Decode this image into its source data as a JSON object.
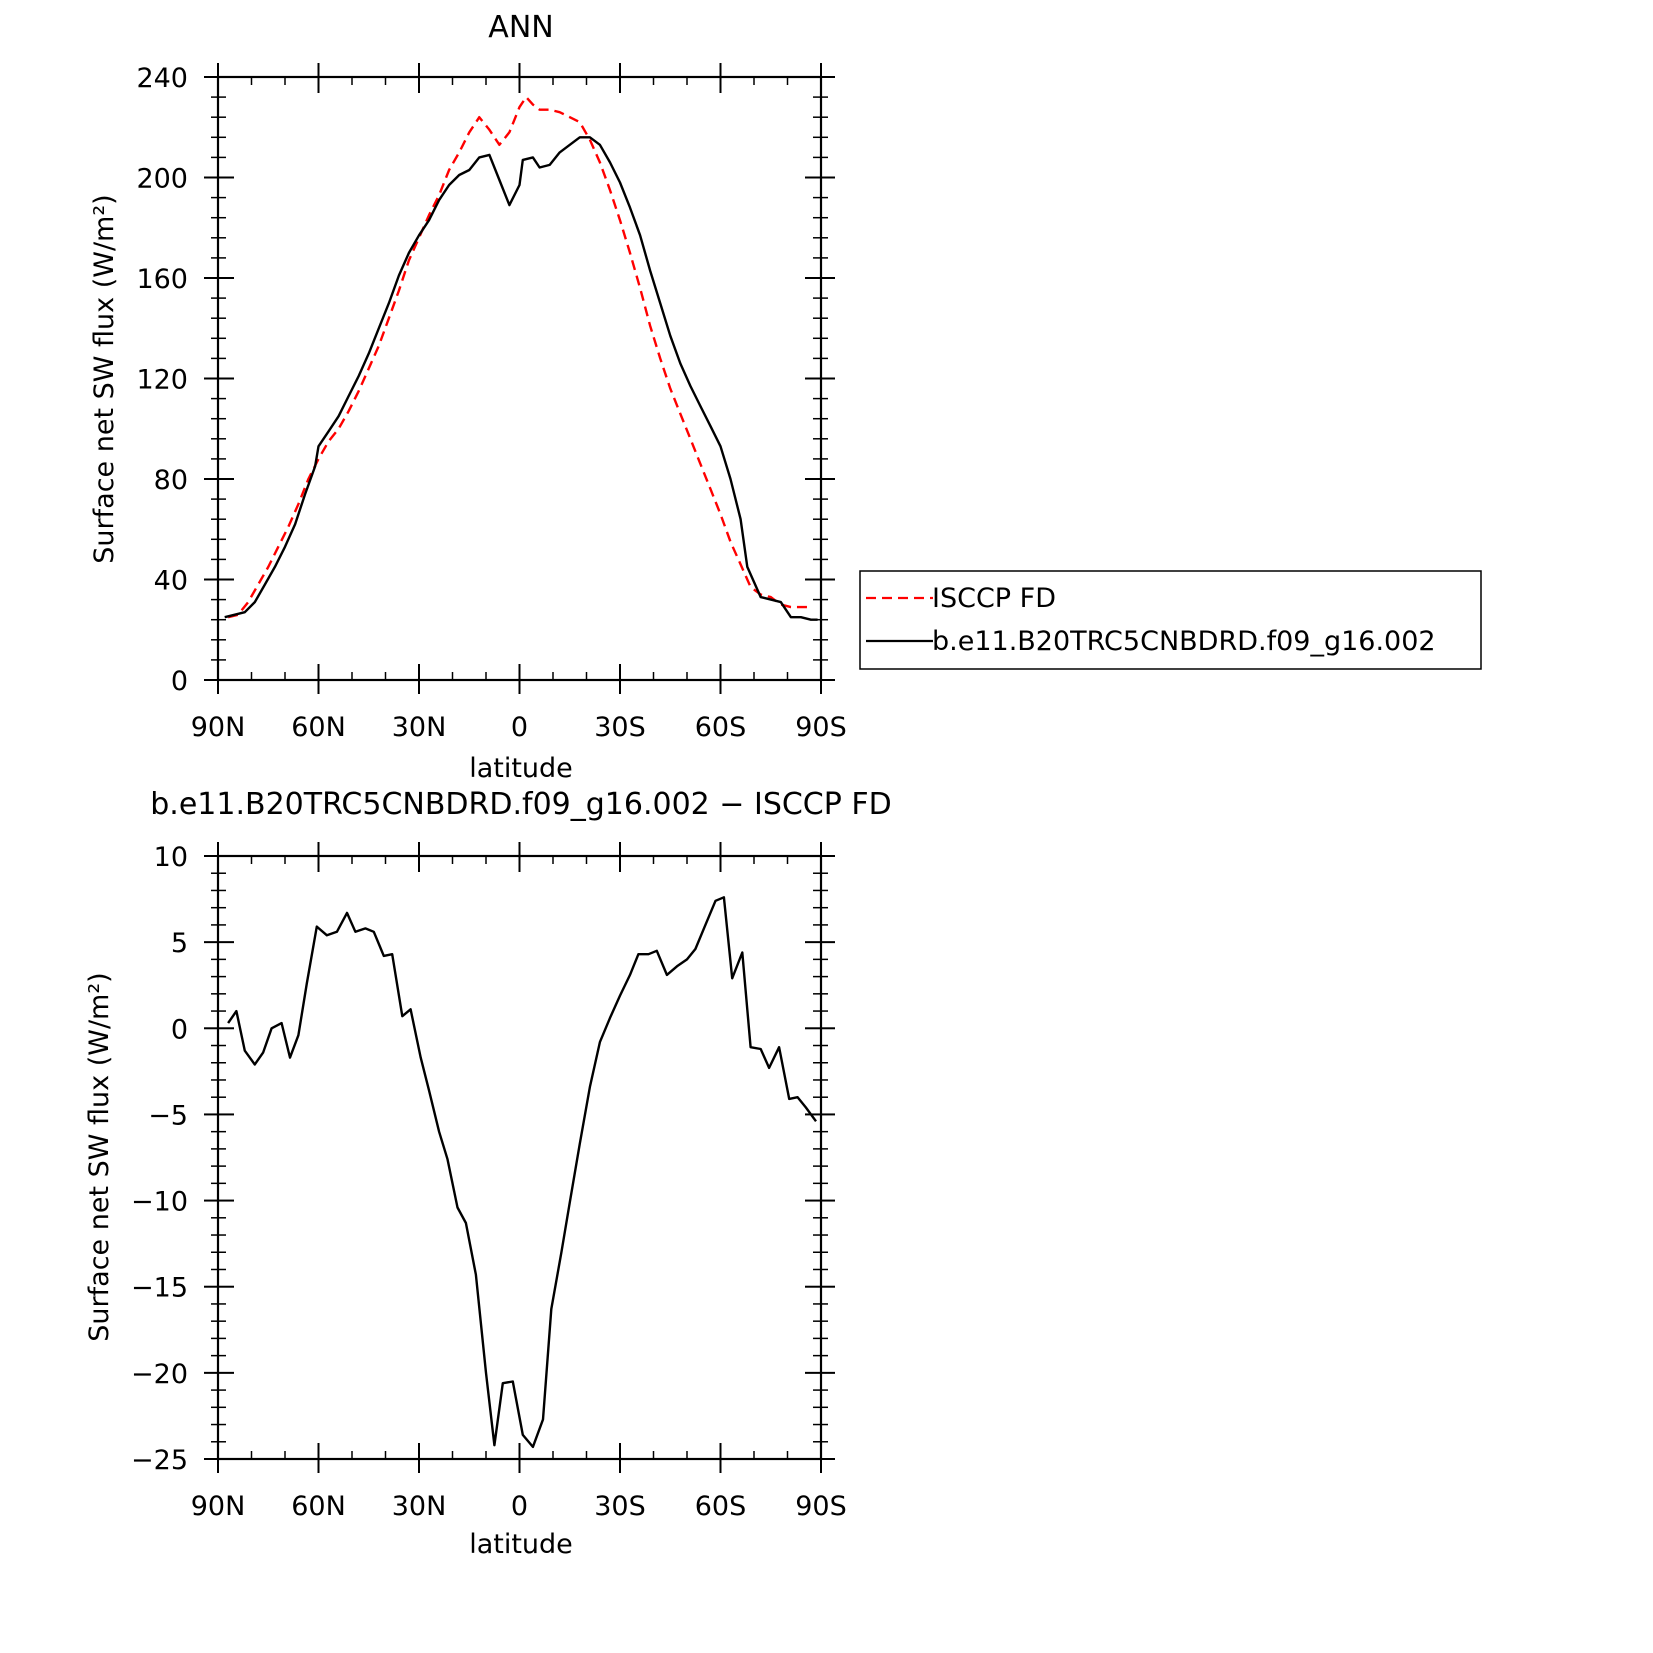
{
  "chart_data": [
    {
      "type": "line",
      "title": "ANN",
      "xlabel": "latitude",
      "ylabel": "Surface net SW flux (W/m²)",
      "xlim": [
        90,
        -90
      ],
      "ylim": [
        0,
        240
      ],
      "x_ticks": [
        90,
        60,
        30,
        0,
        -30,
        -60,
        -90
      ],
      "x_tick_labels": [
        "90N",
        "60N",
        "30N",
        "0",
        "30S",
        "60S",
        "90S"
      ],
      "y_ticks": [
        0,
        40,
        80,
        120,
        160,
        200,
        240
      ],
      "y_tick_labels": [
        "0",
        "40",
        "80",
        "120",
        "160",
        "200",
        "240"
      ],
      "grid": false,
      "legend_position": "right",
      "series": [
        {
          "name": "ISCCP FD",
          "color": "#ff0000",
          "dash": "dashed",
          "points": [
            [
              87,
              25
            ],
            [
              84,
              26
            ],
            [
              81,
              31
            ],
            [
              78,
              38
            ],
            [
              75,
              45
            ],
            [
              72,
              53
            ],
            [
              69,
              61
            ],
            [
              66,
              70
            ],
            [
              63,
              80
            ],
            [
              60,
              88
            ],
            [
              57,
              95
            ],
            [
              54,
              100
            ],
            [
              51,
              107
            ],
            [
              48,
              115
            ],
            [
              45,
              124
            ],
            [
              42,
              133
            ],
            [
              39,
              144
            ],
            [
              36,
              155
            ],
            [
              33,
              167
            ],
            [
              30,
              176
            ],
            [
              27,
              185
            ],
            [
              24,
              193
            ],
            [
              21,
              203
            ],
            [
              18,
              210
            ],
            [
              15,
              218
            ],
            [
              12,
              224
            ],
            [
              9,
              219
            ],
            [
              6,
              213
            ],
            [
              3,
              218
            ],
            [
              0,
              228
            ],
            [
              -2,
              232
            ],
            [
              -4,
              229
            ],
            [
              -6,
              227
            ],
            [
              -9,
              227
            ],
            [
              -12,
              226
            ],
            [
              -15,
              224
            ],
            [
              -18,
              222
            ],
            [
              -21,
              215
            ],
            [
              -24,
              206
            ],
            [
              -27,
              195
            ],
            [
              -30,
              183
            ],
            [
              -33,
              170
            ],
            [
              -36,
              156
            ],
            [
              -39,
              141
            ],
            [
              -42,
              128
            ],
            [
              -45,
              116
            ],
            [
              -48,
              106
            ],
            [
              -51,
              96
            ],
            [
              -54,
              86
            ],
            [
              -57,
              76
            ],
            [
              -60,
              66
            ],
            [
              -63,
              55
            ],
            [
              -66,
              46
            ],
            [
              -69,
              37
            ],
            [
              -72,
              34
            ],
            [
              -75,
              33
            ],
            [
              -78,
              30
            ],
            [
              -81,
              29
            ],
            [
              -84,
              29
            ],
            [
              -87,
              29
            ]
          ]
        },
        {
          "name": "b.e11.B20TRC5CNBDRD.f09_g16.002",
          "color": "#000000",
          "dash": "solid",
          "points": [
            [
              88,
              25
            ],
            [
              85,
              26
            ],
            [
              82,
              27
            ],
            [
              79,
              31
            ],
            [
              76,
              38
            ],
            [
              73,
              45
            ],
            [
              70,
              53
            ],
            [
              67,
              62
            ],
            [
              64,
              74
            ],
            [
              61,
              85
            ],
            [
              60,
              93
            ],
            [
              57,
              99
            ],
            [
              54,
              105
            ],
            [
              51,
              113
            ],
            [
              48,
              121
            ],
            [
              45,
              130
            ],
            [
              42,
              140
            ],
            [
              39,
              150
            ],
            [
              36,
              161
            ],
            [
              33,
              170
            ],
            [
              30,
              177
            ],
            [
              27,
              183
            ],
            [
              24,
              191
            ],
            [
              21,
              197
            ],
            [
              18,
              201
            ],
            [
              15,
              203
            ],
            [
              12,
              208
            ],
            [
              9,
              209
            ],
            [
              6,
              199
            ],
            [
              3,
              189
            ],
            [
              0,
              197
            ],
            [
              -1,
              207
            ],
            [
              -4,
              208
            ],
            [
              -6,
              204
            ],
            [
              -9,
              205
            ],
            [
              -12,
              210
            ],
            [
              -15,
              213
            ],
            [
              -18,
              216
            ],
            [
              -21,
              216
            ],
            [
              -24,
              213
            ],
            [
              -27,
              206
            ],
            [
              -30,
              198
            ],
            [
              -33,
              188
            ],
            [
              -36,
              177
            ],
            [
              -39,
              163
            ],
            [
              -42,
              150
            ],
            [
              -45,
              137
            ],
            [
              -48,
              126
            ],
            [
              -51,
              117
            ],
            [
              -54,
              109
            ],
            [
              -57,
              101
            ],
            [
              -60,
              93
            ],
            [
              -63,
              80
            ],
            [
              -66,
              64
            ],
            [
              -68,
              45
            ],
            [
              -70,
              39
            ],
            [
              -72,
              33
            ],
            [
              -75,
              32
            ],
            [
              -78,
              31
            ],
            [
              -81,
              25
            ],
            [
              -84,
              25
            ],
            [
              -87,
              24
            ],
            [
              -89,
              24
            ]
          ]
        }
      ]
    },
    {
      "type": "line",
      "title": "b.e11.B20TRC5CNBDRD.f09_g16.002 − ISCCP FD",
      "xlabel": "latitude",
      "ylabel": "Surface net SW flux (W/m²)",
      "xlim": [
        90,
        -90
      ],
      "ylim": [
        -25,
        10
      ],
      "x_ticks": [
        90,
        60,
        30,
        0,
        -30,
        -60,
        -90
      ],
      "x_tick_labels": [
        "90N",
        "60N",
        "30N",
        "0",
        "30S",
        "60S",
        "90S"
      ],
      "y_ticks": [
        10,
        5,
        0,
        -5,
        -10,
        -15,
        -20,
        -25
      ],
      "y_tick_labels": [
        "10",
        "5",
        "0",
        "−5",
        "−10",
        "−15",
        "−20",
        "−25"
      ],
      "grid": false,
      "series": [
        {
          "color": "#000000",
          "dash": "solid",
          "points": [
            [
              87,
              0.3
            ],
            [
              84.5,
              1.0
            ],
            [
              82,
              -1.3
            ],
            [
              79,
              -2.1
            ],
            [
              76.5,
              -1.4
            ],
            [
              74,
              0.0
            ],
            [
              71,
              0.3
            ],
            [
              68.5,
              -1.7
            ],
            [
              66,
              -0.4
            ],
            [
              63.5,
              2.6
            ],
            [
              60.5,
              5.9
            ],
            [
              57.5,
              5.4
            ],
            [
              54.5,
              5.6
            ],
            [
              51.5,
              6.7
            ],
            [
              49,
              5.6
            ],
            [
              46,
              5.8
            ],
            [
              43.5,
              5.6
            ],
            [
              40.5,
              4.2
            ],
            [
              38,
              4.3
            ],
            [
              35,
              0.7
            ],
            [
              32.5,
              1.1
            ],
            [
              29.5,
              -1.7
            ],
            [
              27,
              -3.6
            ],
            [
              24,
              -6.0
            ],
            [
              21.5,
              -7.6
            ],
            [
              18.5,
              -10.4
            ],
            [
              16,
              -11.3
            ],
            [
              13,
              -14.3
            ],
            [
              10,
              -20.0
            ],
            [
              7.5,
              -24.2
            ],
            [
              5,
              -20.6
            ],
            [
              2,
              -20.5
            ],
            [
              -1,
              -23.6
            ],
            [
              -4,
              -24.3
            ],
            [
              -7,
              -22.7
            ],
            [
              -9.5,
              -16.3
            ],
            [
              -12.5,
              -13.0
            ],
            [
              -15,
              -10.1
            ],
            [
              -18,
              -6.7
            ],
            [
              -21,
              -3.4
            ],
            [
              -24,
              -0.8
            ],
            [
              -27,
              0.6
            ],
            [
              -30,
              1.9
            ],
            [
              -33,
              3.1
            ],
            [
              -35.5,
              4.3
            ],
            [
              -38.5,
              4.3
            ],
            [
              -41,
              4.5
            ],
            [
              -44,
              3.1
            ],
            [
              -47,
              3.6
            ],
            [
              -50,
              4.0
            ],
            [
              -52.5,
              4.6
            ],
            [
              -55.5,
              6.0
            ],
            [
              -58.5,
              7.4
            ],
            [
              -61,
              7.6
            ],
            [
              -63.5,
              2.9
            ],
            [
              -66.5,
              4.4
            ],
            [
              -69,
              -1.1
            ],
            [
              -72,
              -1.2
            ],
            [
              -74.5,
              -2.3
            ],
            [
              -77.5,
              -1.1
            ],
            [
              -80.5,
              -4.1
            ],
            [
              -83,
              -4.0
            ],
            [
              -85.5,
              -4.6
            ],
            [
              -88.5,
              -5.4
            ]
          ]
        }
      ]
    }
  ]
}
